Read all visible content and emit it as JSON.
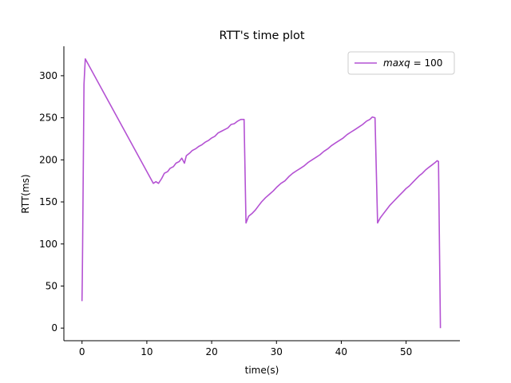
{
  "chart_data": {
    "type": "line",
    "title": "RTT's time plot",
    "xlabel": "time(s)",
    "ylabel": "RTT(ms)",
    "xlim": [
      -2.8,
      58.3
    ],
    "ylim": [
      -15,
      335
    ],
    "xticks": [
      0,
      10,
      20,
      30,
      40,
      50
    ],
    "yticks": [
      0,
      50,
      100,
      150,
      200,
      250,
      300
    ],
    "grid": false,
    "legend_position": "top-right",
    "series": [
      {
        "name": "maxq = 100",
        "legend_math": "maxq",
        "legend_rest": " = 100",
        "color": "#b452d3",
        "x": [
          0.0,
          0.05,
          0.1,
          0.3,
          0.5,
          11.0,
          11.4,
          11.8,
          12.3,
          12.7,
          13.2,
          13.6,
          14.1,
          14.5,
          15.0,
          15.4,
          15.8,
          16.1,
          16.6,
          17.0,
          17.5,
          18.0,
          18.5,
          19.0,
          19.5,
          20.0,
          20.5,
          21.0,
          21.5,
          22.0,
          22.5,
          23.0,
          23.5,
          24.0,
          24.5,
          25.0,
          25.3,
          25.7,
          26.2,
          26.7,
          27.2,
          27.7,
          28.3,
          28.9,
          29.5,
          30.1,
          30.7,
          31.3,
          31.9,
          32.5,
          33.1,
          33.7,
          34.3,
          34.9,
          35.5,
          36.1,
          36.7,
          37.3,
          37.9,
          38.5,
          39.1,
          39.7,
          40.3,
          40.9,
          41.5,
          42.1,
          42.7,
          43.3,
          43.9,
          44.4,
          44.8,
          45.2,
          45.6,
          46.0,
          46.5,
          47.0,
          47.5,
          48.0,
          48.5,
          49.0,
          49.5,
          50.0,
          50.5,
          51.0,
          51.5,
          52.0,
          52.5,
          53.0,
          53.5,
          54.0,
          54.5,
          54.8,
          55.0,
          55.3
        ],
        "y": [
          32,
          60,
          100,
          290,
          320,
          172,
          174,
          172,
          178,
          184,
          186,
          190,
          192,
          196,
          198,
          202,
          196,
          205,
          208,
          211,
          213,
          216,
          218,
          221,
          223,
          226,
          228,
          232,
          234,
          236,
          238,
          242,
          243,
          246,
          248,
          248,
          125,
          133,
          136,
          140,
          145,
          150,
          155,
          159,
          163,
          168,
          172,
          175,
          180,
          184,
          187,
          190,
          193,
          197,
          200,
          203,
          206,
          210,
          213,
          217,
          220,
          223,
          226,
          230,
          233,
          236,
          239,
          242,
          246,
          248,
          251,
          250,
          125,
          131,
          136,
          141,
          146,
          150,
          154,
          158,
          162,
          166,
          169,
          173,
          177,
          181,
          184,
          188,
          191,
          194,
          197,
          199,
          198,
          0
        ]
      }
    ]
  }
}
